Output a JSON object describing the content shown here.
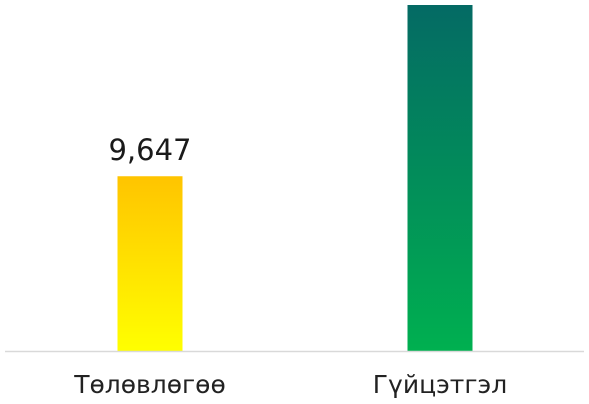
{
  "chart_data": {
    "type": "bar",
    "categories": [
      "Төлөвлөгөө",
      "Гүйцэтгэл"
    ],
    "values": [
      9647,
      19100
    ],
    "data_labels": [
      "9,647",
      ""
    ],
    "title": "",
    "xlabel": "",
    "ylabel": "",
    "ylim": [
      0,
      19100
    ],
    "grid": false,
    "legend": "none",
    "colors": {
      "bar_1_top": "#FFC400",
      "bar_1_bottom": "#FFFF00",
      "bar_2_top": "#046A64",
      "bar_2_bottom": "#00B050",
      "axis_line": "#d9d9d9"
    }
  }
}
